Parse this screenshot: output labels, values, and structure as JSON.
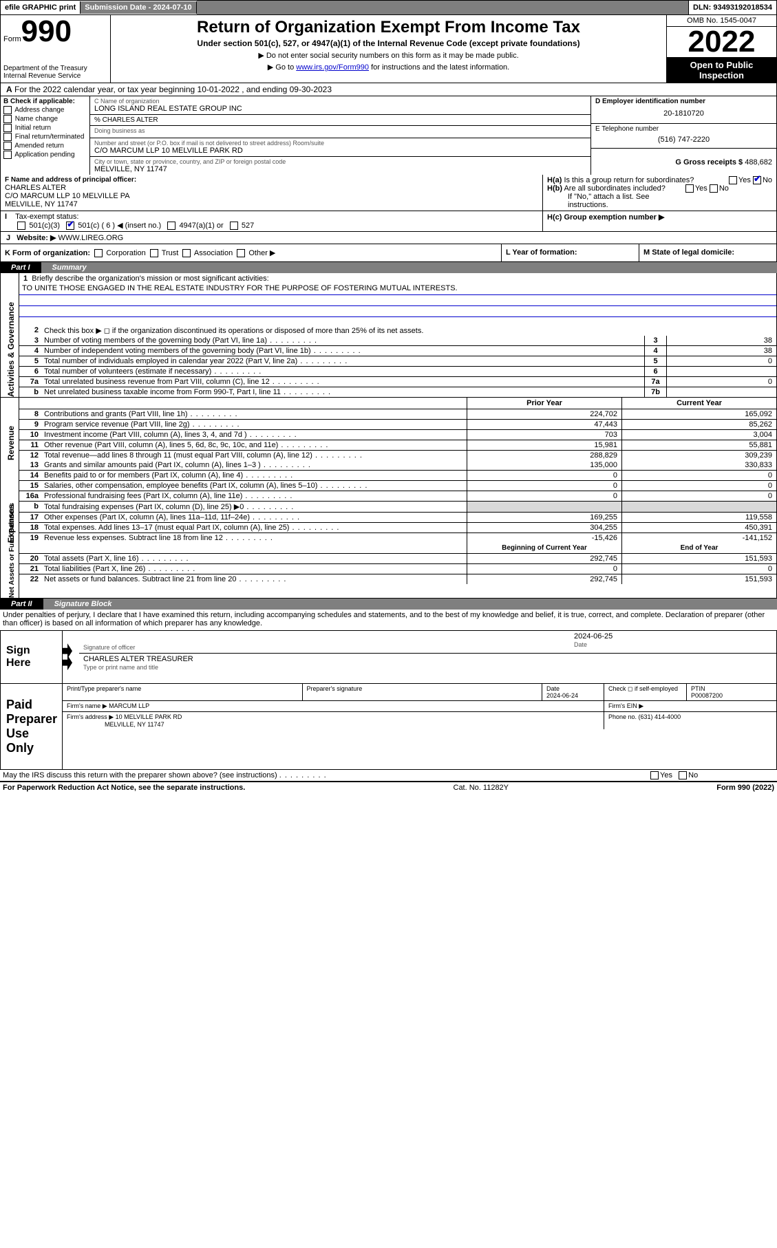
{
  "top": {
    "efile": "efile GRAPHIC print",
    "sub_date": "Submission Date - 2024-07-10",
    "dln": "DLN: 93493192018534"
  },
  "header": {
    "form_word": "Form",
    "form_num": "990",
    "title": "Return of Organization Exempt From Income Tax",
    "subtitle": "Under section 501(c), 527, or 4947(a)(1) of the Internal Revenue Code (except private foundations)",
    "note1": "▶ Do not enter social security numbers on this form as it may be made public.",
    "note2_pre": "▶ Go to ",
    "note2_link": "www.irs.gov/Form990",
    "note2_post": " for instructions and the latest information.",
    "dept": "Department of the Treasury\nInternal Revenue Service",
    "omb": "OMB No. 1545-0047",
    "year": "2022",
    "open": "Open to Public Inspection"
  },
  "line_a": "For the 2022 calendar year, or tax year beginning 10-01-2022   , and ending 09-30-2023",
  "col_b": {
    "title": "B Check if applicable:",
    "items": [
      "Address change",
      "Name change",
      "Initial return",
      "Final return/terminated",
      "Amended return",
      "Application pending"
    ]
  },
  "col_c": {
    "name_lab": "C Name of organization",
    "name": "LONG ISLAND REAL ESTATE GROUP INC",
    "care_lab": "% CHARLES ALTER",
    "dba_lab": "Doing business as",
    "street_lab": "Number and street (or P.O. box if mail is not delivered to street address)       Room/suite",
    "street": "C/O MARCUM LLP 10 MELVILLE PARK RD",
    "city_lab": "City or town, state or province, country, and ZIP or foreign postal code",
    "city": "MELVILLE, NY  11747"
  },
  "col_de": {
    "d_lab": "D Employer identification number",
    "d_val": "20-1810720",
    "e_lab": "E Telephone number",
    "e_val": "(516) 747-2220",
    "g_lab": "G Gross receipts $",
    "g_val": "488,682"
  },
  "officer": {
    "f_lab": "F  Name and address of principal officer:",
    "name": "CHARLES ALTER",
    "addr1": "C/O MARCUM LLP 10 MELVILLE PA",
    "addr2": "MELVILLE, NY  11747"
  },
  "h": {
    "a_lab": "H(a)  Is this a group return for subordinates?",
    "a_yes": "Yes",
    "a_no": "No",
    "b_lab": "H(b)  Are all subordinates included?",
    "b_yes": "Yes",
    "b_no": "No",
    "b_note": "If \"No,\" attach a list. See instructions.",
    "c_lab": "H(c)  Group exemption number ▶"
  },
  "line_i": {
    "lab": "Tax-exempt status:",
    "o1": "501(c)(3)",
    "o2": "501(c) ( 6 ) ◀ (insert no.)",
    "o3": "4947(a)(1) or",
    "o4": "527"
  },
  "line_j": {
    "lab": "Website: ▶",
    "val": "WWW.LIREG.ORG"
  },
  "line_k": {
    "k_lab": "K Form of organization:",
    "opts": [
      "Corporation",
      "Trust",
      "Association",
      "Other ▶"
    ],
    "l_lab": "L Year of formation:",
    "m_lab": "M State of legal domicile:"
  },
  "part1": {
    "num": "Part I",
    "title": "Summary"
  },
  "mission": {
    "num": "1",
    "lab": "Briefly describe the organization's mission or most significant activities:",
    "text": "TO UNITE THOSE ENGAGED IN THE REAL ESTATE INDUSTRY FOR THE PURPOSE OF FOSTERING MUTUAL INTERESTS."
  },
  "gov_rows": [
    {
      "n": "2",
      "d": "Check this box ▶ ◻ if the organization discontinued its operations or disposed of more than 25% of its net assets.",
      "k": "",
      "v": ""
    },
    {
      "n": "3",
      "d": "Number of voting members of the governing body (Part VI, line 1a)",
      "k": "3",
      "v": "38"
    },
    {
      "n": "4",
      "d": "Number of independent voting members of the governing body (Part VI, line 1b)",
      "k": "4",
      "v": "38"
    },
    {
      "n": "5",
      "d": "Total number of individuals employed in calendar year 2022 (Part V, line 2a)",
      "k": "5",
      "v": "0"
    },
    {
      "n": "6",
      "d": "Total number of volunteers (estimate if necessary)",
      "k": "6",
      "v": ""
    },
    {
      "n": "7a",
      "d": "Total unrelated business revenue from Part VIII, column (C), line 12",
      "k": "7a",
      "v": "0"
    },
    {
      "n": "b",
      "d": "Net unrelated business taxable income from Form 990-T, Part I, line 11",
      "k": "7b",
      "v": ""
    }
  ],
  "pyhdr": {
    "p": "Prior Year",
    "c": "Current Year"
  },
  "rev_rows": [
    {
      "n": "8",
      "d": "Contributions and grants (Part VIII, line 1h)",
      "p": "224,702",
      "c": "165,092"
    },
    {
      "n": "9",
      "d": "Program service revenue (Part VIII, line 2g)",
      "p": "47,443",
      "c": "85,262"
    },
    {
      "n": "10",
      "d": "Investment income (Part VIII, column (A), lines 3, 4, and 7d )",
      "p": "703",
      "c": "3,004"
    },
    {
      "n": "11",
      "d": "Other revenue (Part VIII, column (A), lines 5, 6d, 8c, 9c, 10c, and 11e)",
      "p": "15,981",
      "c": "55,881"
    },
    {
      "n": "12",
      "d": "Total revenue—add lines 8 through 11 (must equal Part VIII, column (A), line 12)",
      "p": "288,829",
      "c": "309,239"
    }
  ],
  "exp_rows": [
    {
      "n": "13",
      "d": "Grants and similar amounts paid (Part IX, column (A), lines 1–3 )",
      "p": "135,000",
      "c": "330,833"
    },
    {
      "n": "14",
      "d": "Benefits paid to or for members (Part IX, column (A), line 4)",
      "p": "0",
      "c": "0"
    },
    {
      "n": "15",
      "d": "Salaries, other compensation, employee benefits (Part IX, column (A), lines 5–10)",
      "p": "0",
      "c": "0"
    },
    {
      "n": "16a",
      "d": "Professional fundraising fees (Part IX, column (A), line 11e)",
      "p": "0",
      "c": "0"
    },
    {
      "n": "b",
      "d": "Total fundraising expenses (Part IX, column (D), line 25) ▶0",
      "p": "SHADE",
      "c": "SHADE"
    },
    {
      "n": "17",
      "d": "Other expenses (Part IX, column (A), lines 11a–11d, 11f–24e)",
      "p": "169,255",
      "c": "119,558"
    },
    {
      "n": "18",
      "d": "Total expenses. Add lines 13–17 (must equal Part IX, column (A), line 25)",
      "p": "304,255",
      "c": "450,391"
    },
    {
      "n": "19",
      "d": "Revenue less expenses. Subtract line 18 from line 12",
      "p": "-15,426",
      "c": "-141,152"
    }
  ],
  "nethdr": {
    "p": "Beginning of Current Year",
    "c": "End of Year"
  },
  "net_rows": [
    {
      "n": "20",
      "d": "Total assets (Part X, line 16)",
      "p": "292,745",
      "c": "151,593"
    },
    {
      "n": "21",
      "d": "Total liabilities (Part X, line 26)",
      "p": "0",
      "c": "0"
    },
    {
      "n": "22",
      "d": "Net assets or fund balances. Subtract line 21 from line 20",
      "p": "292,745",
      "c": "151,593"
    }
  ],
  "part2": {
    "num": "Part II",
    "title": "Signature Block"
  },
  "penalties": "Under penalties of perjury, I declare that I have examined this return, including accompanying schedules and statements, and to the best of my knowledge and belief, it is true, correct, and complete. Declaration of preparer (other than officer) is based on all information of which preparer has any knowledge.",
  "sign_here": {
    "lab": "Sign Here",
    "sig_lab": "Signature of officer",
    "date_lab": "Date",
    "date": "2024-06-25",
    "name": "CHARLES ALTER TREASURER",
    "name_lab": "Type or print name and title"
  },
  "paid_prep": {
    "lab": "Paid Preparer Use Only",
    "r1c1": "Print/Type preparer's name",
    "r1c2": "Preparer's signature",
    "r1c3_lab": "Date",
    "r1c3_val": "2024-06-24",
    "r1c4": "Check ◻ if self-employed",
    "r1c5_lab": "PTIN",
    "r1c5_val": "P00087200",
    "r2_lab": "Firm's name   ▶",
    "r2_val": "MARCUM LLP",
    "r2_ein": "Firm's EIN ▶",
    "r3_lab": "Firm's address ▶",
    "r3_val1": "10 MELVILLE PARK RD",
    "r3_val2": "MELVILLE, NY  11747",
    "r3_phone": "Phone no. (631) 414-4000"
  },
  "may_discuss": "May the IRS discuss this return with the preparer shown above? (see instructions)",
  "may_yes": "Yes",
  "may_no": "No",
  "footer": {
    "left": "For Paperwork Reduction Act Notice, see the separate instructions.",
    "mid": "Cat. No. 11282Y",
    "right": "Form 990 (2022)"
  },
  "vert": {
    "gov": "Activities & Governance",
    "rev": "Revenue",
    "exp": "Expenses",
    "net": "Net Assets or Fund Balances"
  }
}
